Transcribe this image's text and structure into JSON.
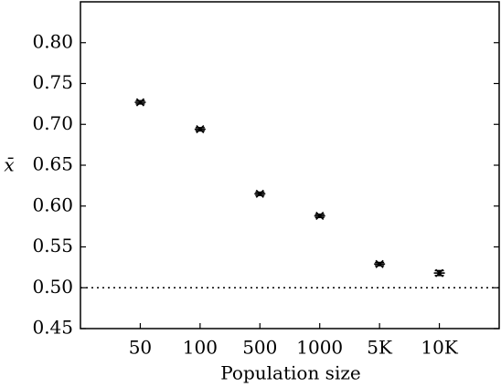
{
  "chart_data": {
    "type": "errorbar-scatter",
    "x_label": "Population size",
    "y_label": "x̄",
    "categories": [
      "50",
      "100",
      "500",
      "1000",
      "5K",
      "10K"
    ],
    "values": [
      0.727,
      0.694,
      0.615,
      0.588,
      0.529,
      0.518
    ],
    "errors": [
      0.002,
      0.002,
      0.002,
      0.002,
      0.002,
      0.003
    ],
    "color": "#000000",
    "reference_line": 0.5,
    "ylim": [
      0.45,
      0.85
    ],
    "yticks": [
      {
        "value": 0.45,
        "label": "0.45"
      },
      {
        "value": 0.5,
        "label": "0.50"
      },
      {
        "value": 0.55,
        "label": "0.55"
      },
      {
        "value": 0.6,
        "label": "0.60"
      },
      {
        "value": 0.65,
        "label": "0.65"
      },
      {
        "value": 0.7,
        "label": "0.70"
      },
      {
        "value": 0.75,
        "label": "0.75"
      },
      {
        "value": 0.8,
        "label": "0.80"
      }
    ]
  }
}
